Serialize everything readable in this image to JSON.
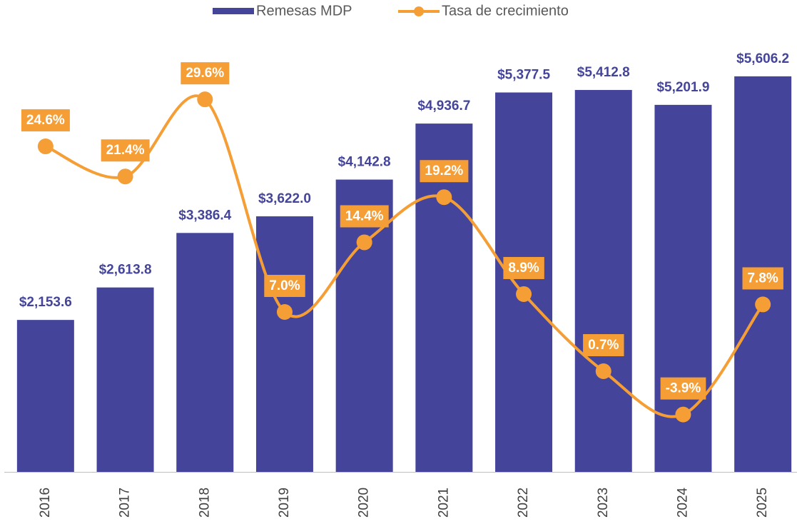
{
  "chart_data": {
    "type": "bar",
    "categories": [
      "2016",
      "2017",
      "2018",
      "2019",
      "2020",
      "2021",
      "2022",
      "2023",
      "2024",
      "2025"
    ],
    "ylim": [
      0,
      6000
    ],
    "y2lim": [
      -10,
      35
    ],
    "legend": "top",
    "series": [
      {
        "name": "Remesas MDP",
        "type": "bar",
        "color": "#43449a",
        "values": [
          2153.6,
          2613.8,
          3386.4,
          3622.0,
          4142.8,
          4936.7,
          5377.5,
          5412.8,
          5201.9,
          5606.2
        ],
        "value_labels": [
          "$2,153.6",
          "$2,613.8",
          "$3,386.4",
          "$3,622.0",
          "$4,142.8",
          "$4,936.7",
          "$5,377.5",
          "$5,412.8",
          "$5,201.9",
          "$5,606.2"
        ]
      },
      {
        "name": "Tasa de crecimiento",
        "type": "line",
        "axis": "y2",
        "color": "#f59e35",
        "values": [
          24.6,
          21.4,
          29.6,
          7.0,
          14.4,
          19.2,
          8.9,
          0.7,
          -3.9,
          7.8
        ],
        "value_labels": [
          "24.6%",
          "21.4%",
          "29.6%",
          "7.0%",
          "14.4%",
          "19.2%",
          "8.9%",
          "0.7%",
          "-3.9%",
          "7.8%"
        ]
      }
    ]
  }
}
